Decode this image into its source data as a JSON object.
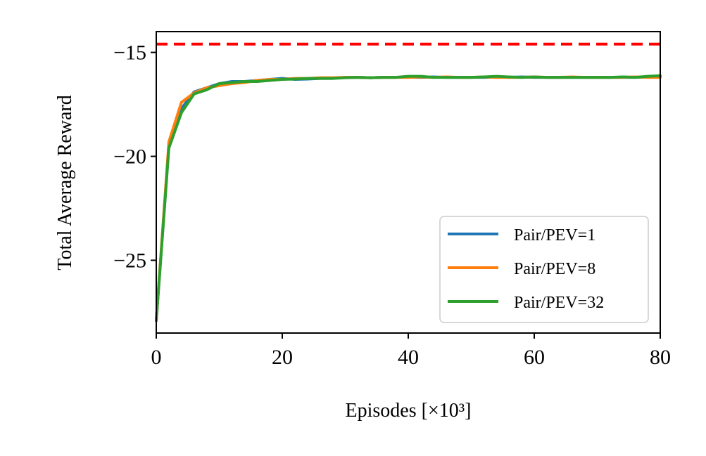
{
  "chart_data": {
    "type": "line",
    "title": "",
    "xlabel": "Episodes [×10³]",
    "ylabel": "Total Average Reward",
    "xlim": [
      0,
      80
    ],
    "ylim": [
      -28.5,
      -14.0
    ],
    "xticks": [
      0,
      20,
      40,
      60,
      80
    ],
    "yticks": [
      -15,
      -20,
      -25
    ],
    "xtick_labels": [
      "0",
      "20",
      "40",
      "60",
      "80"
    ],
    "ytick_labels": [
      "−15",
      "−20",
      "−25"
    ],
    "grid": false,
    "legend_position": "lower-right",
    "reference_line": {
      "y": -14.6,
      "color": "#ff0000",
      "style": "dashed"
    },
    "x": [
      0,
      2,
      4,
      6,
      8,
      10,
      12,
      14,
      16,
      18,
      20,
      22,
      24,
      26,
      28,
      30,
      32,
      34,
      36,
      38,
      40,
      42,
      44,
      46,
      48,
      50,
      52,
      54,
      56,
      58,
      60,
      62,
      64,
      66,
      68,
      70,
      72,
      74,
      76,
      78,
      80
    ],
    "series": [
      {
        "name": "Pair/PEV=1",
        "color": "#1f77b4",
        "values": [
          -27.9,
          -19.5,
          -17.7,
          -16.9,
          -16.7,
          -16.5,
          -16.4,
          -16.4,
          -16.35,
          -16.3,
          -16.25,
          -16.3,
          -16.28,
          -16.25,
          -16.25,
          -16.2,
          -16.2,
          -16.22,
          -16.2,
          -16.2,
          -16.18,
          -16.2,
          -16.18,
          -16.2,
          -16.2,
          -16.2,
          -16.2,
          -16.18,
          -16.2,
          -16.18,
          -16.2,
          -16.2,
          -16.2,
          -16.2,
          -16.2,
          -16.2,
          -16.2,
          -16.2,
          -16.2,
          -16.18,
          -16.15
        ]
      },
      {
        "name": "Pair/PEV=8",
        "color": "#ff7f0e",
        "values": [
          -27.9,
          -19.3,
          -17.4,
          -16.95,
          -16.7,
          -16.6,
          -16.5,
          -16.45,
          -16.35,
          -16.3,
          -16.3,
          -16.25,
          -16.25,
          -16.22,
          -16.22,
          -16.2,
          -16.2,
          -16.22,
          -16.2,
          -16.2,
          -16.2,
          -16.18,
          -16.2,
          -16.18,
          -16.2,
          -16.2,
          -16.18,
          -16.2,
          -16.2,
          -16.2,
          -16.18,
          -16.2,
          -16.2,
          -16.18,
          -16.2,
          -16.2,
          -16.2,
          -16.2,
          -16.18,
          -16.2,
          -16.2
        ]
      },
      {
        "name": "Pair/PEV=32",
        "color": "#2ca02c",
        "values": [
          -27.9,
          -19.6,
          -17.9,
          -17.0,
          -16.8,
          -16.5,
          -16.45,
          -16.4,
          -16.4,
          -16.35,
          -16.3,
          -16.28,
          -16.25,
          -16.25,
          -16.25,
          -16.22,
          -16.2,
          -16.22,
          -16.2,
          -16.2,
          -16.15,
          -16.15,
          -16.2,
          -16.2,
          -16.2,
          -16.2,
          -16.18,
          -16.15,
          -16.18,
          -16.2,
          -16.18,
          -16.2,
          -16.2,
          -16.2,
          -16.2,
          -16.2,
          -16.2,
          -16.18,
          -16.2,
          -16.15,
          -16.12
        ]
      }
    ]
  }
}
